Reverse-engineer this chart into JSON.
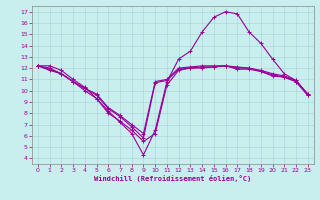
{
  "background_color": "#c8eeee",
  "grid_color": "#aadddd",
  "line_color": "#990099",
  "xlabel": "Windchill (Refroidissement éolien,°C)",
  "xlim": [
    -0.5,
    23.5
  ],
  "ylim": [
    3.5,
    17.5
  ],
  "xticks": [
    0,
    1,
    2,
    3,
    4,
    5,
    6,
    7,
    8,
    9,
    10,
    11,
    12,
    13,
    14,
    15,
    16,
    17,
    18,
    19,
    20,
    21,
    22,
    23
  ],
  "yticks": [
    4,
    5,
    6,
    7,
    8,
    9,
    10,
    11,
    12,
    13,
    14,
    15,
    16,
    17
  ],
  "series": [
    {
      "x": [
        0,
        1,
        2,
        3,
        4,
        5,
        6,
        7,
        8,
        9,
        10,
        11,
        12,
        13,
        14,
        15,
        16,
        17,
        18,
        19,
        20,
        21,
        22,
        23
      ],
      "y": [
        12.2,
        12.2,
        11.8,
        11.0,
        10.3,
        9.3,
        8.2,
        7.2,
        6.2,
        4.3,
        6.5,
        10.8,
        12.8,
        13.5,
        15.2,
        16.5,
        17.0,
        16.8,
        15.2,
        14.2,
        12.8,
        11.5,
        10.9,
        9.7
      ],
      "marker": "+"
    },
    {
      "x": [
        0,
        1,
        2,
        3,
        4,
        5,
        6,
        7,
        8,
        9,
        10,
        11,
        12,
        13,
        14,
        15,
        16,
        17,
        18,
        19,
        20,
        21,
        22,
        23
      ],
      "y": [
        12.2,
        12.0,
        11.5,
        10.8,
        10.0,
        9.3,
        8.0,
        7.3,
        6.5,
        5.5,
        6.2,
        10.5,
        11.8,
        12.0,
        12.0,
        12.1,
        12.2,
        12.1,
        12.0,
        11.7,
        11.3,
        11.2,
        10.8,
        9.6
      ],
      "marker": "+"
    },
    {
      "x": [
        0,
        1,
        2,
        3,
        4,
        5,
        6,
        7,
        8,
        9,
        10,
        11,
        12,
        13,
        14,
        15,
        16,
        17,
        18,
        19,
        20,
        21,
        22,
        23
      ],
      "y": [
        12.2,
        11.8,
        11.5,
        10.8,
        10.2,
        9.7,
        8.5,
        7.8,
        7.0,
        6.2,
        10.8,
        11.0,
        12.0,
        12.1,
        12.2,
        12.2,
        12.2,
        12.0,
        12.0,
        11.8,
        11.5,
        11.3,
        10.9,
        9.7
      ],
      "marker": "+"
    },
    {
      "x": [
        0,
        1,
        2,
        3,
        4,
        5,
        6,
        7,
        8,
        9,
        10,
        11,
        12,
        13,
        14,
        15,
        16,
        17,
        18,
        19,
        20,
        21,
        22,
        23
      ],
      "y": [
        12.2,
        11.9,
        11.5,
        10.8,
        10.2,
        9.6,
        8.4,
        7.7,
        6.8,
        5.8,
        10.7,
        10.9,
        11.9,
        12.0,
        12.1,
        12.1,
        12.2,
        11.9,
        11.9,
        11.7,
        11.4,
        11.2,
        10.8,
        9.6
      ],
      "marker": "+"
    }
  ]
}
